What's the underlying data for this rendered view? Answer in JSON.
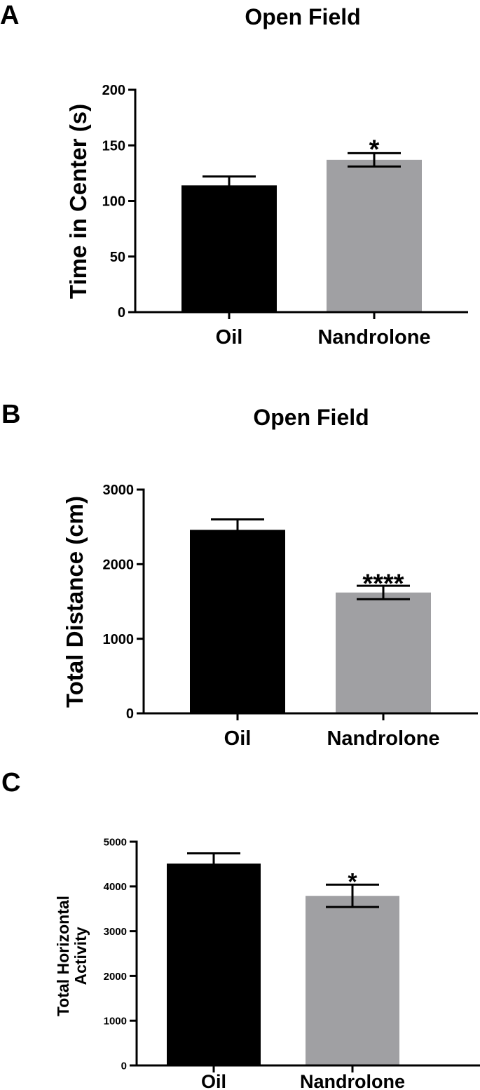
{
  "chart_data": [
    {
      "panel_label": "A",
      "type": "bar",
      "title": "Open Field",
      "ylabel": "Time in Center (s)",
      "categories": [
        "Oil",
        "Nandrolone"
      ],
      "values": [
        114,
        137
      ],
      "errors": [
        8,
        6
      ],
      "significance": [
        "",
        "*"
      ],
      "ylim": [
        0,
        200
      ],
      "yticks": [
        0,
        50,
        100,
        150,
        200
      ],
      "bar_colors": [
        "#000000",
        "#a0a0a3"
      ]
    },
    {
      "panel_label": "B",
      "type": "bar",
      "title": "Open Field",
      "ylabel": "Total Distance (cm)",
      "categories": [
        "Oil",
        "Nandrolone"
      ],
      "values": [
        2460,
        1620
      ],
      "errors": [
        140,
        90
      ],
      "significance": [
        "",
        "****"
      ],
      "ylim": [
        0,
        3000
      ],
      "yticks": [
        0,
        1000,
        2000,
        3000
      ],
      "bar_colors": [
        "#000000",
        "#a0a0a3"
      ]
    },
    {
      "panel_label": "C",
      "type": "bar",
      "title": "",
      "ylabel": "Total Horizontal Activity",
      "categories": [
        "Oil",
        "Nandrolone"
      ],
      "values": [
        4510,
        3790
      ],
      "errors": [
        230,
        250
      ],
      "significance": [
        "",
        "*"
      ],
      "ylim": [
        0,
        5000
      ],
      "yticks": [
        0,
        1000,
        2000,
        3000,
        4000,
        5000
      ],
      "bar_colors": [
        "#000000",
        "#a0a0a3"
      ]
    }
  ]
}
